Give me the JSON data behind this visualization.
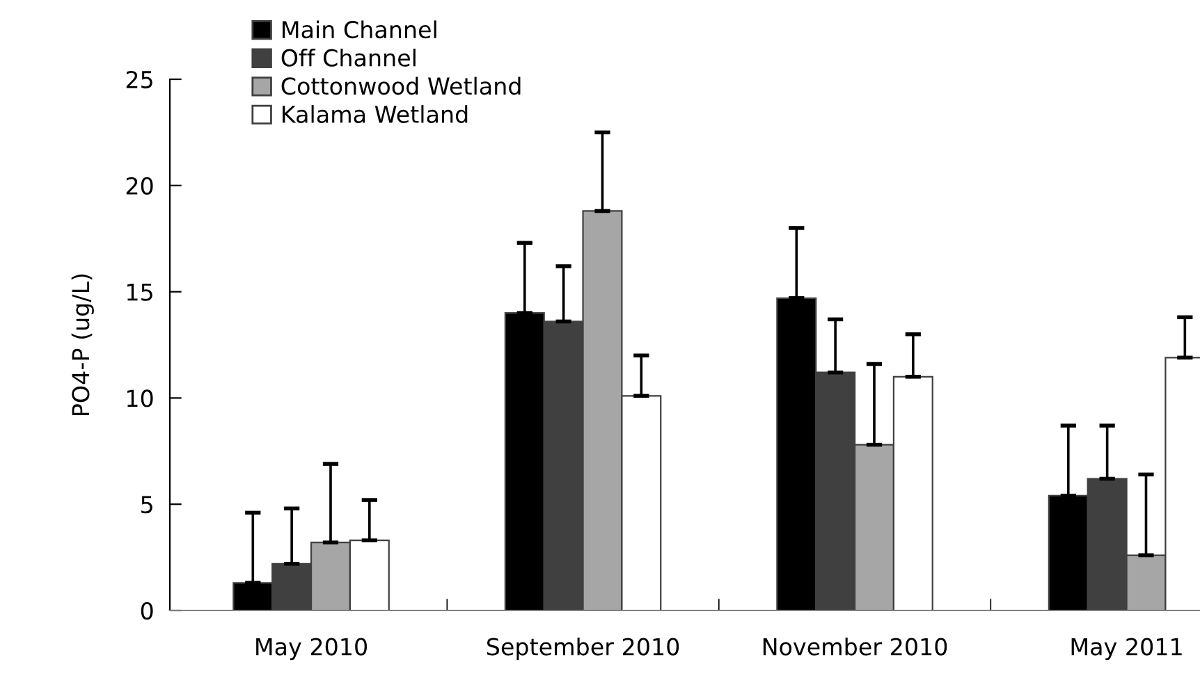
{
  "chart_data": {
    "type": "bar",
    "ylabel": "PO4-P (ug/L)",
    "categories": [
      "May 2010",
      "September 2010",
      "November 2010",
      "May 2011"
    ],
    "series": [
      {
        "name": "Main Channel",
        "color": "#000000",
        "values": [
          1.3,
          14.0,
          14.7,
          5.4
        ],
        "errors": [
          [
            1.3,
            4.6
          ],
          [
            14.0,
            17.3
          ],
          [
            14.7,
            18.0
          ],
          [
            5.4,
            8.7
          ]
        ]
      },
      {
        "name": "Off Channel",
        "color": "#404040",
        "values": [
          2.2,
          13.6,
          11.2,
          6.2
        ],
        "errors": [
          [
            2.2,
            4.8
          ],
          [
            13.6,
            16.2
          ],
          [
            11.2,
            13.7
          ],
          [
            6.2,
            8.7
          ]
        ]
      },
      {
        "name": "Cottonwood Wetland",
        "color": "#a6a6a6",
        "values": [
          3.2,
          18.8,
          7.8,
          2.6
        ],
        "errors": [
          [
            3.2,
            6.9
          ],
          [
            18.8,
            22.5
          ],
          [
            7.8,
            11.6
          ],
          [
            2.6,
            6.4
          ]
        ]
      },
      {
        "name": "Kalama Wetland",
        "color": "#ffffff",
        "values": [
          3.3,
          10.1,
          11.0,
          11.9
        ],
        "errors": [
          [
            3.3,
            5.2
          ],
          [
            10.1,
            12.0
          ],
          [
            11.0,
            13.0
          ],
          [
            11.9,
            13.8
          ]
        ]
      }
    ],
    "ylim": [
      0,
      25
    ],
    "yticks": [
      0,
      5,
      10,
      15,
      20,
      25
    ],
    "grid": false,
    "legend": "top left"
  }
}
